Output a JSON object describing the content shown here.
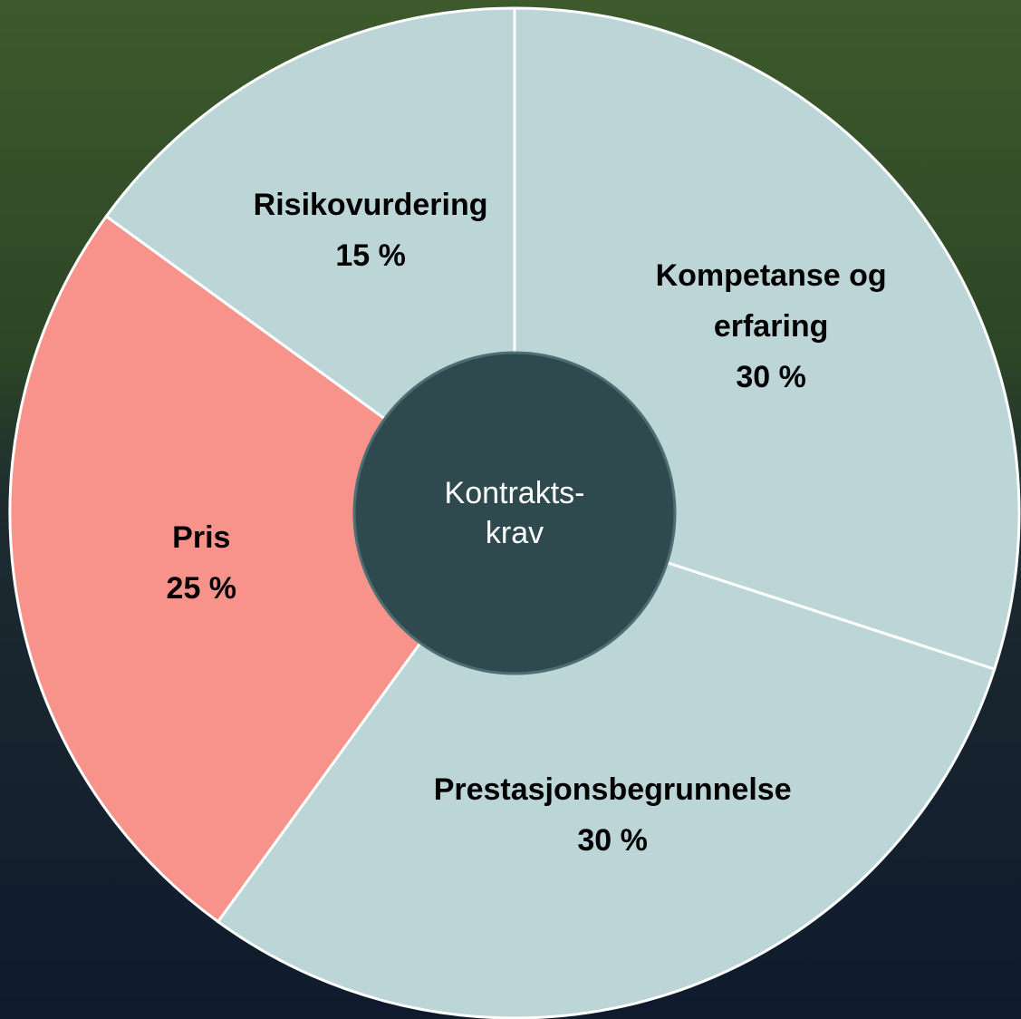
{
  "chart_data": {
    "type": "pie",
    "categories": [
      "Kompetanse og erfaring",
      "Prestasjonsbegrunnelse",
      "Pris",
      "Risikovurdering"
    ],
    "values": [
      30,
      30,
      25,
      15
    ],
    "value_labels": [
      "30 %",
      "30 %",
      "25 %",
      "15 %"
    ],
    "colors": [
      "#bcd6d8",
      "#bcd6d8",
      "#f7938a",
      "#bcd6d8"
    ],
    "center_label": [
      "Kontrakts-",
      "krav"
    ]
  }
}
